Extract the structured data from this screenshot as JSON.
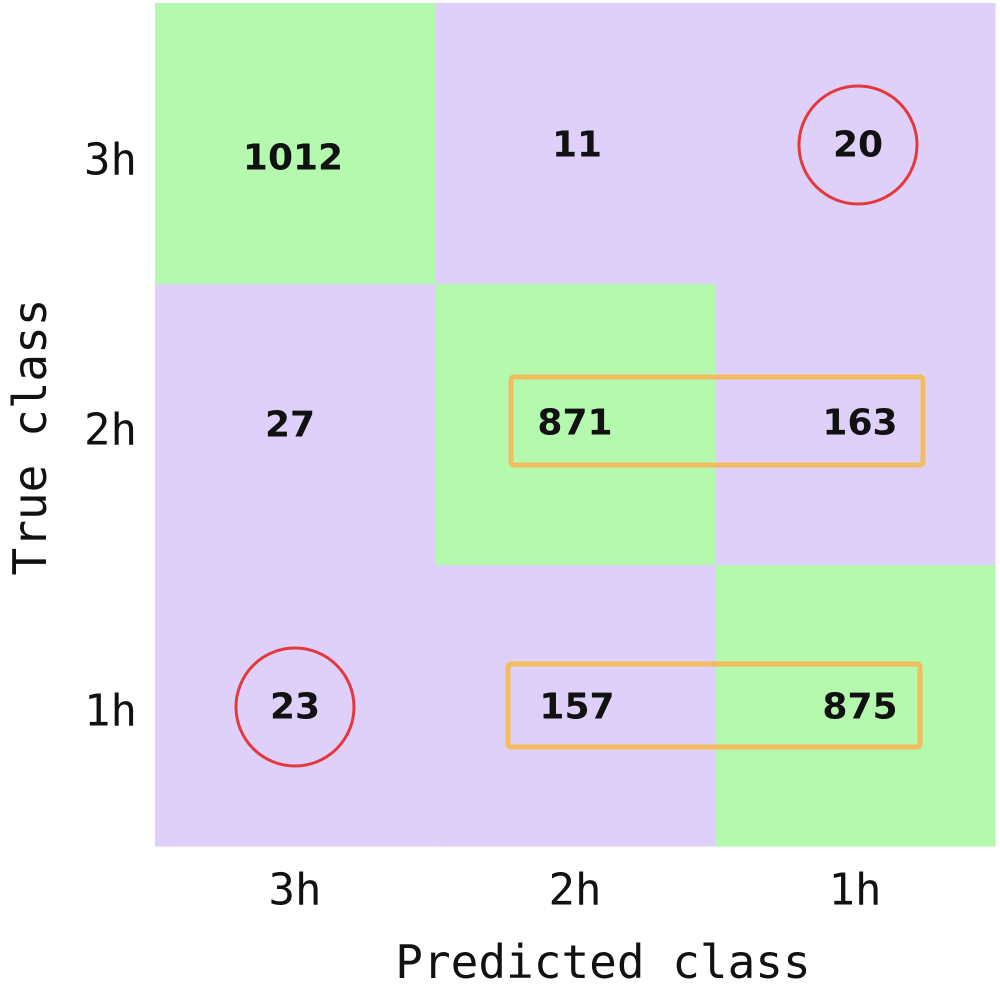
{
  "chart_data": {
    "type": "heatmap",
    "title": "",
    "xlabel": "Predicted class",
    "ylabel": "True class",
    "x_categories": [
      "3h",
      "2h",
      "1h"
    ],
    "y_categories": [
      "3h",
      "2h",
      "1h"
    ],
    "values": [
      [
        1012,
        11,
        20
      ],
      [
        27,
        871,
        163
      ],
      [
        23,
        157,
        875
      ]
    ],
    "colors": {
      "correct": "#b4f9ae",
      "incorrect": "#dfd0fa",
      "circle_highlight": "#e4393c",
      "box_highlight": "#f2bc5f"
    },
    "highlights": {
      "circled_cells": [
        [
          0,
          2
        ],
        [
          2,
          0
        ]
      ],
      "boxed_rows": [
        1,
        2
      ],
      "boxed_columns": [
        1,
        2
      ]
    },
    "grid": false,
    "legend": "none"
  }
}
